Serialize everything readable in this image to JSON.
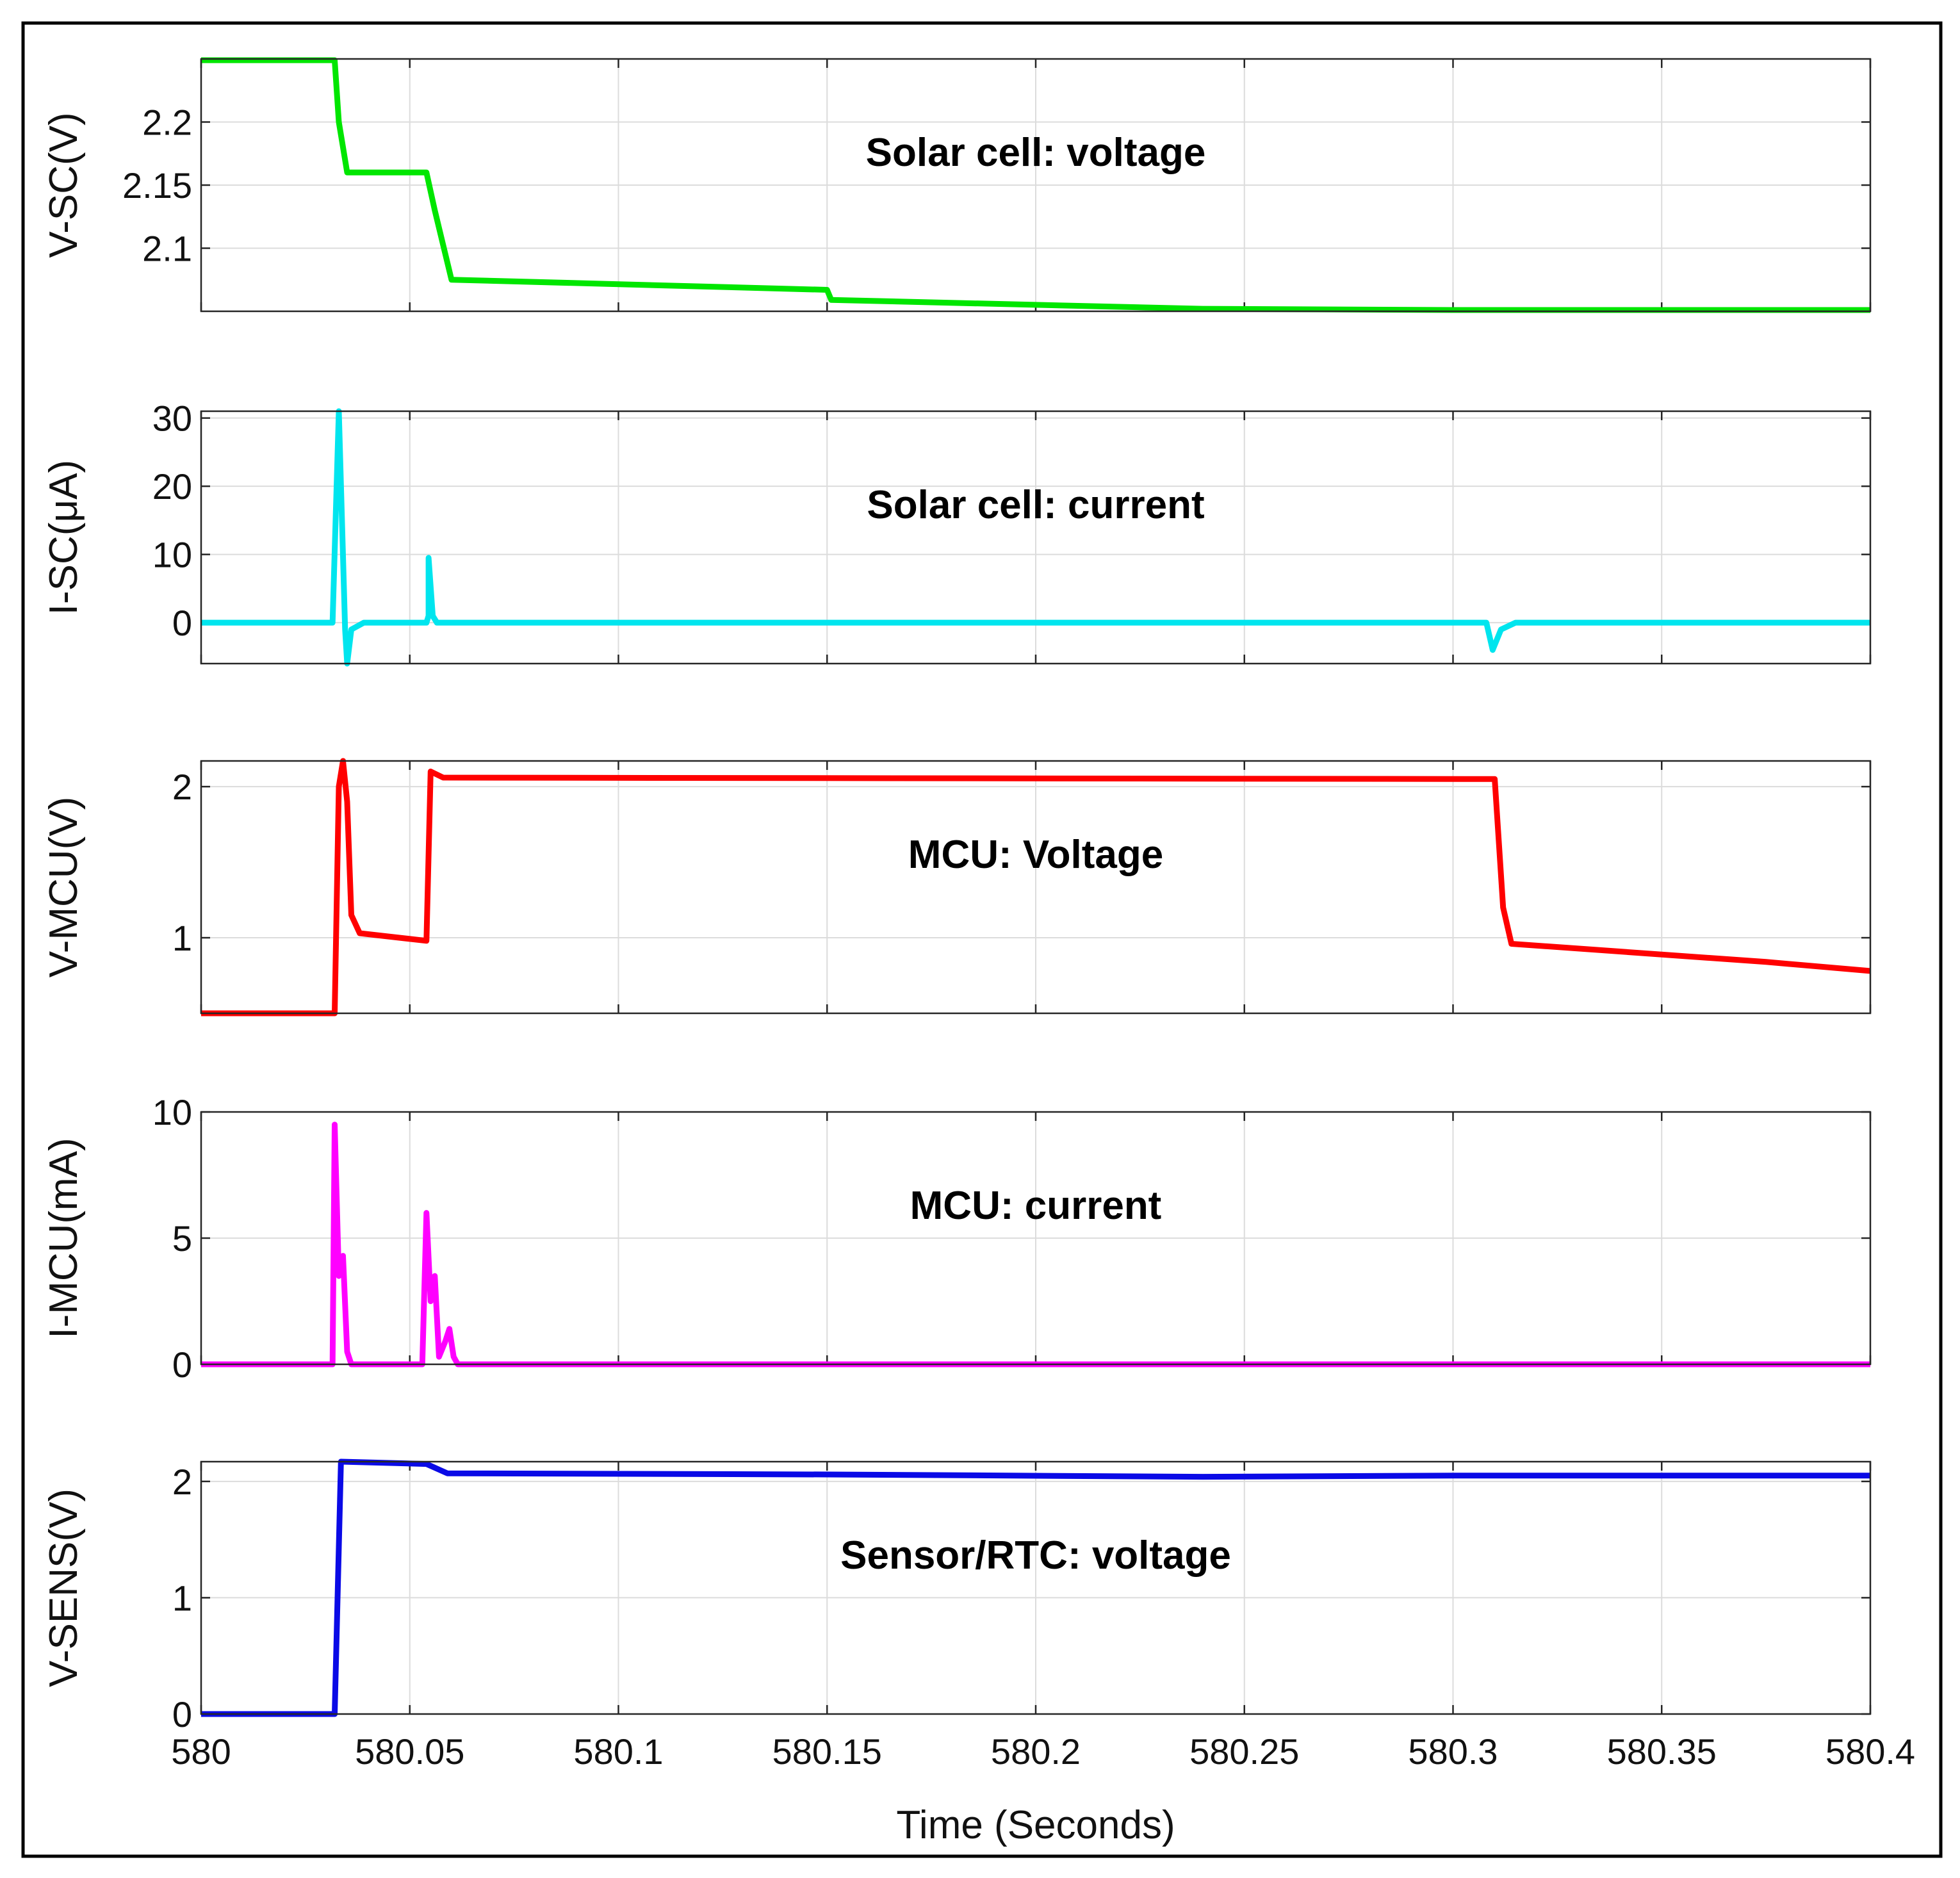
{
  "chart_data": {
    "type": "line",
    "layout": "stacked subplots sharing x-axis",
    "xlabel": "Time (Seconds)",
    "xlim": [
      580,
      580.4
    ],
    "xticks": [
      580,
      580.05,
      580.1,
      580.15,
      580.2,
      580.25,
      580.3,
      580.35,
      580.4
    ],
    "xtick_labels": [
      "580",
      "580.05",
      "580.1",
      "580.15",
      "580.2",
      "580.25",
      "580.3",
      "580.35",
      "580.4"
    ],
    "grid": true,
    "panels": [
      {
        "id": "v-sc",
        "ylabel": "V-SC(V)",
        "annotation": "Solar cell: voltage",
        "color": "#00e600",
        "ylim": [
          2.05,
          2.25
        ],
        "yticks": [
          2.1,
          2.15,
          2.2
        ],
        "ytick_labels": [
          "2.1",
          "2.15",
          "2.2"
        ],
        "points": [
          [
            580,
            2.249
          ],
          [
            580.032,
            2.249
          ],
          [
            580.033,
            2.2
          ],
          [
            580.035,
            2.16
          ],
          [
            580.054,
            2.16
          ],
          [
            580.056,
            2.13
          ],
          [
            580.06,
            2.075
          ],
          [
            580.15,
            2.067
          ],
          [
            580.151,
            2.059
          ],
          [
            580.24,
            2.052
          ],
          [
            580.3,
            2.051
          ],
          [
            580.4,
            2.051
          ]
        ]
      },
      {
        "id": "i-sc",
        "ylabel": "I-SC(μA)",
        "annotation": "Solar cell: current",
        "color": "#00e5ee",
        "ylim": [
          -6,
          31
        ],
        "yticks": [
          0,
          10,
          20,
          30
        ],
        "ytick_labels": [
          "0",
          "10",
          "20",
          "30"
        ],
        "points": [
          [
            580,
            0
          ],
          [
            580.0315,
            0
          ],
          [
            580.033,
            31
          ],
          [
            580.0345,
            -1
          ],
          [
            580.035,
            -6
          ],
          [
            580.036,
            -1
          ],
          [
            580.039,
            0
          ],
          [
            580.054,
            0
          ],
          [
            580.0545,
            1
          ],
          [
            580.0545,
            9.5
          ],
          [
            580.0555,
            1
          ],
          [
            580.0565,
            0
          ],
          [
            580.308,
            0
          ],
          [
            580.3095,
            -4
          ],
          [
            580.3115,
            -1
          ],
          [
            580.315,
            0
          ],
          [
            580.4,
            0
          ]
        ]
      },
      {
        "id": "v-mcu",
        "ylabel": "V-MCU(V)",
        "annotation": "MCU: Voltage",
        "color": "#ff0000",
        "ylim": [
          0.5,
          2.17
        ],
        "yticks": [
          1,
          2
        ],
        "ytick_labels": [
          "1",
          "2"
        ],
        "points": [
          [
            580,
            0.5
          ],
          [
            580.032,
            0.5
          ],
          [
            580.033,
            2.0
          ],
          [
            580.034,
            2.17
          ],
          [
            580.035,
            1.9
          ],
          [
            580.036,
            1.15
          ],
          [
            580.038,
            1.03
          ],
          [
            580.054,
            0.98
          ],
          [
            580.055,
            2.1
          ],
          [
            580.058,
            2.06
          ],
          [
            580.31,
            2.05
          ],
          [
            580.312,
            1.2
          ],
          [
            580.314,
            0.96
          ],
          [
            580.375,
            0.84
          ],
          [
            580.4,
            0.78
          ]
        ]
      },
      {
        "id": "i-mcu",
        "ylabel": "I-MCU(mA)",
        "annotation": "MCU: current",
        "color": "#ff00ff",
        "ylim": [
          0,
          10
        ],
        "yticks": [
          0,
          5,
          10
        ],
        "ytick_labels": [
          "0",
          "5",
          "10"
        ],
        "points": [
          [
            580,
            0
          ],
          [
            580.0315,
            0
          ],
          [
            580.032,
            9.5
          ],
          [
            580.033,
            3.5
          ],
          [
            580.034,
            4.3
          ],
          [
            580.035,
            0.5
          ],
          [
            580.036,
            0
          ],
          [
            580.053,
            0
          ],
          [
            580.054,
            6.0
          ],
          [
            580.055,
            2.5
          ],
          [
            580.056,
            3.5
          ],
          [
            580.057,
            0.3
          ],
          [
            580.0585,
            0.9
          ],
          [
            580.0595,
            1.4
          ],
          [
            580.0605,
            0.3
          ],
          [
            580.0615,
            0
          ],
          [
            580.4,
            0
          ]
        ]
      },
      {
        "id": "v-sens",
        "ylabel": "V-SENS(V)",
        "annotation": "Sensor/RTC: voltage",
        "color": "#0a0ae6",
        "ylim": [
          0,
          2.17
        ],
        "yticks": [
          0,
          1,
          2
        ],
        "ytick_labels": [
          "0",
          "1",
          "2"
        ],
        "points": [
          [
            580,
            0
          ],
          [
            580.032,
            0
          ],
          [
            580.0335,
            2.17
          ],
          [
            580.054,
            2.15
          ],
          [
            580.059,
            2.07
          ],
          [
            580.15,
            2.06
          ],
          [
            580.24,
            2.04
          ],
          [
            580.3,
            2.05
          ],
          [
            580.4,
            2.05
          ]
        ]
      }
    ]
  }
}
